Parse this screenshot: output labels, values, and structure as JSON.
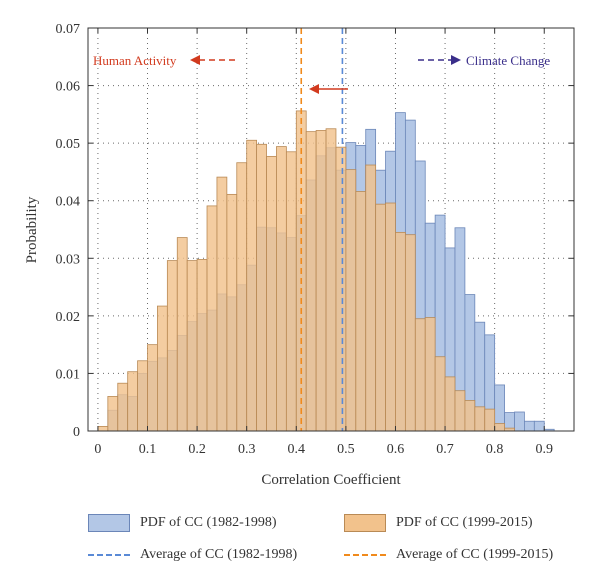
{
  "chart_data": {
    "type": "bar",
    "xlabel": "Correlation Coefficient",
    "ylabel": "Probability",
    "xlim": [
      -0.02,
      0.96
    ],
    "ylim": [
      0,
      0.07
    ],
    "xticks": [
      "0",
      "0.1",
      "0.2",
      "0.3",
      "0.4",
      "0.5",
      "0.6",
      "0.7",
      "0.8",
      "0.9"
    ],
    "yticks": [
      "0",
      "0.01",
      "0.02",
      "0.03",
      "0.04",
      "0.05",
      "0.06",
      "0.07"
    ],
    "grid": true,
    "bin_width": 0.02,
    "series": [
      {
        "name": "PDF of CC (1982-1998)",
        "color": "#b3c7e6",
        "edge": "#6b86b8",
        "bin_start": [
          0.0,
          0.02,
          0.04,
          0.06,
          0.08,
          0.1,
          0.12,
          0.14,
          0.16,
          0.18,
          0.2,
          0.22,
          0.24,
          0.26,
          0.28,
          0.3,
          0.32,
          0.34,
          0.36,
          0.38,
          0.4,
          0.42,
          0.44,
          0.46,
          0.48,
          0.5,
          0.52,
          0.54,
          0.56,
          0.58,
          0.6,
          0.62,
          0.64,
          0.66,
          0.68,
          0.7,
          0.72,
          0.74,
          0.76,
          0.78,
          0.8,
          0.82,
          0.84,
          0.86,
          0.88,
          0.9
        ],
        "values": [
          0.0,
          0.0036,
          0.0063,
          0.006,
          0.01,
          0.0121,
          0.0127,
          0.014,
          0.0166,
          0.019,
          0.0204,
          0.021,
          0.0238,
          0.0233,
          0.0254,
          0.0288,
          0.0354,
          0.0353,
          0.0344,
          0.0336,
          0.0374,
          0.0436,
          0.0478,
          0.0492,
          0.0453,
          0.0501,
          0.0496,
          0.0524,
          0.0453,
          0.0486,
          0.0553,
          0.054,
          0.0469,
          0.0361,
          0.0375,
          0.0318,
          0.0353,
          0.0237,
          0.0189,
          0.0167,
          0.008,
          0.0032,
          0.0033,
          0.0017,
          0.0017,
          0.0003
        ]
      },
      {
        "name": "PDF of CC (1999-2015)",
        "color": "#f2c28c",
        "edge": "#b98a55",
        "bin_start": [
          0.0,
          0.02,
          0.04,
          0.06,
          0.08,
          0.1,
          0.12,
          0.14,
          0.16,
          0.18,
          0.2,
          0.22,
          0.24,
          0.26,
          0.28,
          0.3,
          0.32,
          0.34,
          0.36,
          0.38,
          0.4,
          0.42,
          0.44,
          0.46,
          0.48,
          0.5,
          0.52,
          0.54,
          0.56,
          0.58,
          0.6,
          0.62,
          0.64,
          0.66,
          0.68,
          0.7,
          0.72,
          0.74,
          0.76,
          0.78,
          0.8,
          0.82,
          0.84,
          0.86,
          0.88,
          0.9
        ],
        "values": [
          0.0008,
          0.006,
          0.0083,
          0.0103,
          0.0122,
          0.015,
          0.0217,
          0.0296,
          0.0336,
          0.0296,
          0.0298,
          0.0391,
          0.0441,
          0.0411,
          0.0466,
          0.0505,
          0.0498,
          0.0477,
          0.0494,
          0.0485,
          0.0556,
          0.052,
          0.0522,
          0.0525,
          0.0493,
          0.0454,
          0.0416,
          0.0462,
          0.0394,
          0.0396,
          0.0345,
          0.0341,
          0.0195,
          0.0197,
          0.0129,
          0.0094,
          0.007,
          0.0053,
          0.0042,
          0.0038,
          0.0013,
          0.0005,
          0.0,
          0.0,
          0.0,
          0.0
        ]
      }
    ],
    "averages": [
      {
        "name": "Average of CC (1982-1998)",
        "value": 0.493,
        "color": "#5a8ad6"
      },
      {
        "name": "Average of CC (1999-2015)",
        "value": 0.41,
        "color": "#f08a1c"
      }
    ],
    "annotations": {
      "human": {
        "text": "Human Activity",
        "color": "#d23a1e"
      },
      "climate": {
        "text": "Climate Change",
        "color": "#3a2e8a"
      },
      "shift_arrow_color": "#d23a1e"
    }
  }
}
